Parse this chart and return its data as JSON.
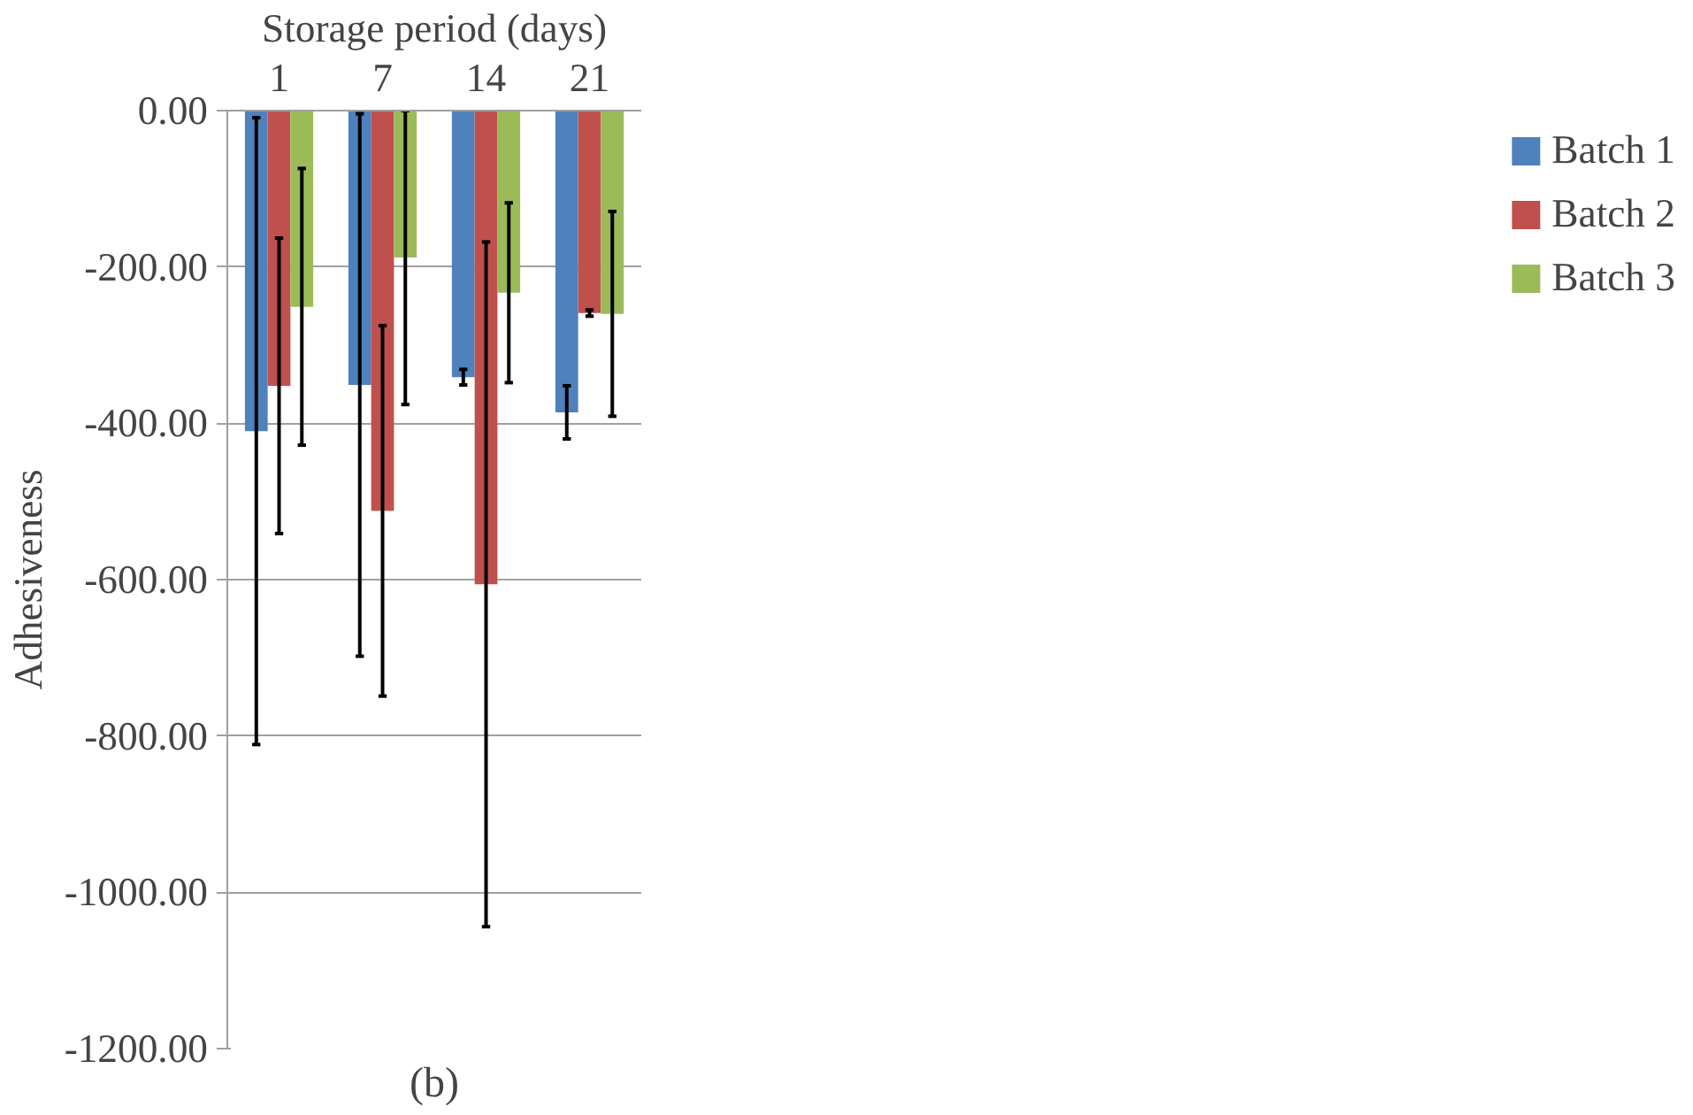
{
  "chart_data": {
    "type": "bar",
    "xlabel": "Storage period (days)",
    "ylabel": "Adhesiveness",
    "categories": [
      "1",
      "7",
      "14",
      "21"
    ],
    "series": [
      {
        "name": "Batch 1",
        "color": "#4f81bd",
        "values": [
          -410,
          -351,
          -341,
          -386
        ],
        "errors": [
          401,
          347,
          10,
          34
        ]
      },
      {
        "name": "Batch 2",
        "color": "#c0504d",
        "values": [
          -352,
          -512,
          -606,
          -259
        ],
        "errors": [
          189,
          237,
          438,
          4
        ]
      },
      {
        "name": "Batch 3",
        "color": "#9bbb59",
        "values": [
          -251,
          -188,
          -233,
          -260
        ],
        "errors": [
          177,
          188,
          115,
          131
        ]
      }
    ],
    "ylim": [
      -1200,
      0
    ],
    "yticks": [
      {
        "value": 0,
        "label": "0.00"
      },
      {
        "value": -200,
        "label": "-200.00"
      },
      {
        "value": -400,
        "label": "-400.00"
      },
      {
        "value": -600,
        "label": "-600.00"
      },
      {
        "value": -800,
        "label": "-800.00"
      },
      {
        "value": -1000,
        "label": "-1000.00"
      },
      {
        "value": -1200,
        "label": "-1200.00"
      }
    ],
    "grid": "y",
    "legend": "right",
    "annotations": [
      "(b)"
    ]
  }
}
